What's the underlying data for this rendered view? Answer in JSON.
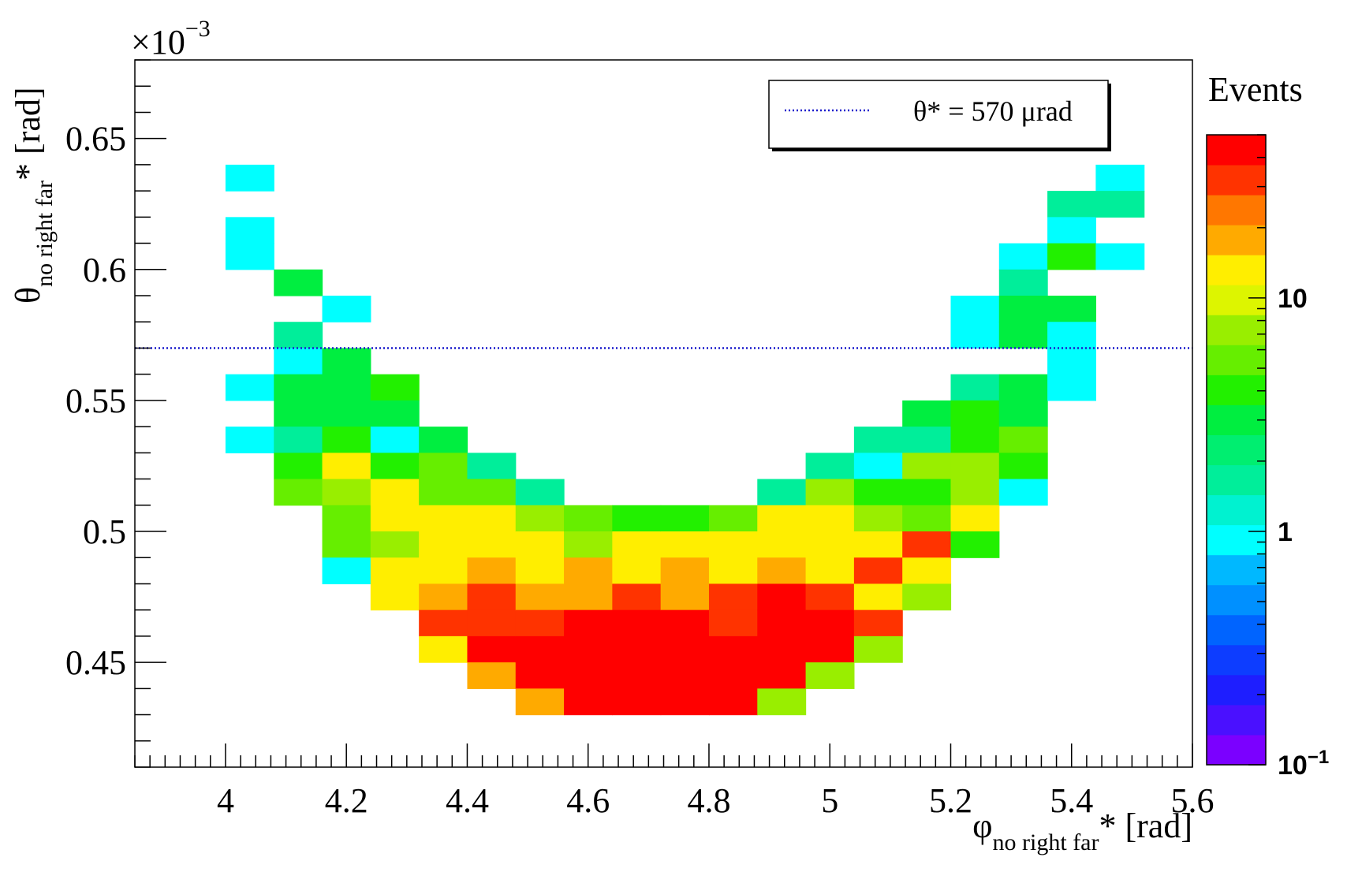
{
  "chart_data": {
    "type": "heatmap",
    "xlabel": {
      "main": "φ",
      "sub": "no right far",
      "suffix": "* [rad]"
    },
    "ylabel": {
      "main": "θ",
      "sub": "no right far",
      "suffix": "* [rad]"
    },
    "y_multiplier": {
      "base": "×10",
      "exp": "−3"
    },
    "xlim": [
      3.85,
      5.6
    ],
    "ylim": [
      0.41,
      0.68
    ],
    "x_ticks": [
      {
        "value": 4.0,
        "label": "4"
      },
      {
        "value": 4.2,
        "label": "4.2"
      },
      {
        "value": 4.4,
        "label": "4.4"
      },
      {
        "value": 4.6,
        "label": "4.6"
      },
      {
        "value": 4.8,
        "label": "4.8"
      },
      {
        "value": 5.0,
        "label": "5"
      },
      {
        "value": 5.2,
        "label": "5.2"
      },
      {
        "value": 5.4,
        "label": "5.4"
      },
      {
        "value": 5.6,
        "label": "5.6"
      }
    ],
    "y_ticks": [
      {
        "value": 0.45,
        "label": "0.45"
      },
      {
        "value": 0.5,
        "label": "0.5"
      },
      {
        "value": 0.55,
        "label": "0.55"
      },
      {
        "value": 0.6,
        "label": "0.6"
      },
      {
        "value": 0.65,
        "label": "0.65"
      }
    ],
    "bins": {
      "x0": 4.0,
      "dx": 0.08,
      "y0": 0.43,
      "dy": 0.01
    },
    "colorbar": {
      "title": "Events",
      "scale": "log",
      "min": 0.1,
      "max": 50,
      "labels": [
        {
          "value": 0.1,
          "base": "10",
          "exp": "−1"
        },
        {
          "value": 1,
          "base": "1",
          "exp": ""
        },
        {
          "value": 10,
          "base": "10",
          "exp": ""
        }
      ],
      "palette": [
        "#7b00ff",
        "#4a10ff",
        "#1e1eff",
        "#0d3dff",
        "#0064ff",
        "#0090ff",
        "#00b8ff",
        "#00ffff",
        "#00f2d0",
        "#00ee9a",
        "#00ee70",
        "#00ee40",
        "#22f000",
        "#66ee00",
        "#99ee00",
        "#ddf500",
        "#ffee00",
        "#ffaa00",
        "#ff7700",
        "#ff3300",
        "#ff0000"
      ]
    },
    "reference_line": {
      "y": 0.57,
      "color": "#1a1acc",
      "label": "θ* = 570 μrad"
    },
    "cells": [
      [
        0,
        20,
        1
      ],
      [
        0,
        18,
        1
      ],
      [
        0,
        17,
        1
      ],
      [
        0,
        12,
        1
      ],
      [
        0,
        10,
        1
      ],
      [
        1,
        16,
        3
      ],
      [
        1,
        14,
        1.5
      ],
      [
        1,
        13,
        1
      ],
      [
        1,
        12,
        3
      ],
      [
        1,
        11,
        3
      ],
      [
        1,
        10,
        1.5
      ],
      [
        1,
        9,
        3.5
      ],
      [
        1,
        8,
        6
      ],
      [
        2,
        15,
        1
      ],
      [
        2,
        13,
        3
      ],
      [
        2,
        12,
        3
      ],
      [
        2,
        11,
        3
      ],
      [
        2,
        10,
        3.5
      ],
      [
        2,
        9,
        14
      ],
      [
        2,
        8,
        8
      ],
      [
        2,
        7,
        5
      ],
      [
        2,
        6,
        5
      ],
      [
        2,
        5,
        1
      ],
      [
        3,
        12,
        3.5
      ],
      [
        3,
        11,
        3
      ],
      [
        3,
        10,
        1
      ],
      [
        3,
        9,
        3.5
      ],
      [
        3,
        8,
        12
      ],
      [
        3,
        7,
        12
      ],
      [
        3,
        6,
        8
      ],
      [
        3,
        5,
        14
      ],
      [
        3,
        4,
        14
      ],
      [
        4,
        10,
        3
      ],
      [
        4,
        9,
        5
      ],
      [
        4,
        8,
        5
      ],
      [
        4,
        7,
        15
      ],
      [
        4,
        6,
        15
      ],
      [
        4,
        5,
        14
      ],
      [
        4,
        4,
        20
      ],
      [
        4,
        3,
        28
      ],
      [
        4,
        2,
        12
      ],
      [
        5,
        9,
        1.5
      ],
      [
        5,
        8,
        5
      ],
      [
        5,
        7,
        15
      ],
      [
        5,
        6,
        15
      ],
      [
        5,
        5,
        20
      ],
      [
        5,
        4,
        28
      ],
      [
        5,
        3,
        28
      ],
      [
        5,
        2,
        38
      ],
      [
        5,
        1,
        20
      ],
      [
        6,
        8,
        1.5
      ],
      [
        6,
        7,
        8
      ],
      [
        6,
        6,
        15
      ],
      [
        6,
        5,
        15
      ],
      [
        6,
        4,
        20
      ],
      [
        6,
        3,
        28
      ],
      [
        6,
        2,
        38
      ],
      [
        6,
        1,
        50
      ],
      [
        6,
        0,
        20
      ],
      [
        7,
        7,
        5
      ],
      [
        7,
        6,
        7
      ],
      [
        7,
        5,
        20
      ],
      [
        7,
        4,
        20
      ],
      [
        7,
        3,
        38
      ],
      [
        7,
        2,
        38
      ],
      [
        7,
        1,
        50
      ],
      [
        7,
        0,
        38
      ],
      [
        8,
        7,
        3.5
      ],
      [
        8,
        6,
        15
      ],
      [
        8,
        5,
        15
      ],
      [
        8,
        4,
        28
      ],
      [
        8,
        3,
        38
      ],
      [
        8,
        2,
        38
      ],
      [
        8,
        1,
        50
      ],
      [
        8,
        0,
        50
      ],
      [
        9,
        7,
        3.5
      ],
      [
        9,
        6,
        15
      ],
      [
        9,
        5,
        20
      ],
      [
        9,
        4,
        20
      ],
      [
        9,
        3,
        38
      ],
      [
        9,
        2,
        38
      ],
      [
        9,
        1,
        50
      ],
      [
        9,
        0,
        50
      ],
      [
        10,
        7,
        5
      ],
      [
        10,
        6,
        12
      ],
      [
        10,
        5,
        15
      ],
      [
        10,
        4,
        28
      ],
      [
        10,
        3,
        28
      ],
      [
        10,
        2,
        38
      ],
      [
        10,
        1,
        50
      ],
      [
        10,
        0,
        50
      ],
      [
        11,
        8,
        1.5
      ],
      [
        11,
        7,
        12
      ],
      [
        11,
        6,
        12
      ],
      [
        11,
        5,
        20
      ],
      [
        11,
        4,
        38
      ],
      [
        11,
        3,
        38
      ],
      [
        11,
        2,
        38
      ],
      [
        11,
        1,
        50
      ],
      [
        11,
        0,
        7
      ],
      [
        12,
        9,
        1.5
      ],
      [
        12,
        8,
        8
      ],
      [
        12,
        7,
        15
      ],
      [
        12,
        6,
        15
      ],
      [
        12,
        5,
        15
      ],
      [
        12,
        4,
        28
      ],
      [
        12,
        3,
        38
      ],
      [
        12,
        2,
        38
      ],
      [
        12,
        1,
        8
      ],
      [
        13,
        10,
        1.5
      ],
      [
        13,
        9,
        1
      ],
      [
        13,
        8,
        3.5
      ],
      [
        13,
        7,
        8
      ],
      [
        13,
        6,
        15
      ],
      [
        13,
        5,
        28
      ],
      [
        13,
        4,
        15
      ],
      [
        13,
        3,
        28
      ],
      [
        13,
        2,
        7
      ],
      [
        14,
        11,
        3
      ],
      [
        14,
        10,
        1.5
      ],
      [
        14,
        9,
        7
      ],
      [
        14,
        8,
        3.5
      ],
      [
        14,
        7,
        5
      ],
      [
        14,
        6,
        28
      ],
      [
        14,
        5,
        15
      ],
      [
        14,
        4,
        7
      ],
      [
        15,
        15,
        1
      ],
      [
        15,
        14,
        1
      ],
      [
        15,
        12,
        1.5
      ],
      [
        15,
        11,
        3.5
      ],
      [
        15,
        10,
        3.5
      ],
      [
        15,
        9,
        8
      ],
      [
        15,
        8,
        8
      ],
      [
        15,
        7,
        14
      ],
      [
        15,
        6,
        3.5
      ],
      [
        16,
        17,
        1
      ],
      [
        16,
        16,
        1.5
      ],
      [
        16,
        15,
        3
      ],
      [
        16,
        14,
        3
      ],
      [
        16,
        12,
        3
      ],
      [
        16,
        11,
        3
      ],
      [
        16,
        10,
        5
      ],
      [
        16,
        9,
        3.5
      ],
      [
        16,
        8,
        1
      ],
      [
        17,
        19,
        1.5
      ],
      [
        17,
        18,
        1
      ],
      [
        17,
        17,
        3.5
      ],
      [
        17,
        15,
        3
      ],
      [
        17,
        14,
        1
      ],
      [
        17,
        13,
        1
      ],
      [
        17,
        12,
        1
      ],
      [
        18,
        20,
        1
      ],
      [
        18,
        19,
        1.5
      ],
      [
        18,
        17,
        1
      ]
    ]
  }
}
